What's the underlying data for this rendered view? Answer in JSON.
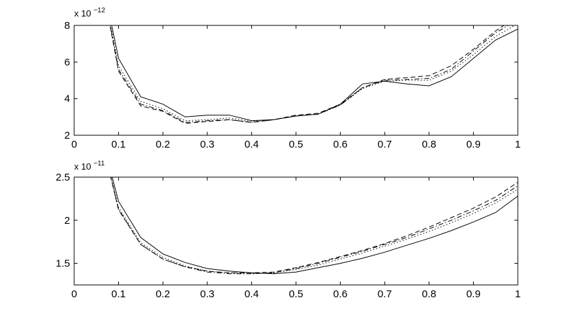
{
  "chart_data": [
    {
      "type": "line",
      "xlim": [
        0,
        1
      ],
      "ylim": [
        2,
        8
      ],
      "xticks": [
        "0",
        "0.1",
        "0.2",
        "0.3",
        "0.4",
        "0.5",
        "0.6",
        "0.7",
        "0.8",
        "0.9",
        "1"
      ],
      "yticks": [
        "2",
        "4",
        "6",
        "8"
      ],
      "y_exponent": {
        "base": "x 10",
        "power": "−12"
      },
      "grid": false,
      "x": [
        0.05,
        0.1,
        0.15,
        0.2,
        0.25,
        0.3,
        0.35,
        0.4,
        0.45,
        0.5,
        0.55,
        0.6,
        0.65,
        0.7,
        0.75,
        0.8,
        0.85,
        0.9,
        0.95,
        1.0
      ],
      "series": [
        {
          "style": "solid",
          "values": [
            12.0,
            6.2,
            4.1,
            3.7,
            3.0,
            3.1,
            3.1,
            2.8,
            2.85,
            3.05,
            3.15,
            3.7,
            4.8,
            4.95,
            4.8,
            4.7,
            5.2,
            6.2,
            7.2,
            7.8
          ]
        },
        {
          "style": "dashed",
          "values": [
            12.0,
            5.5,
            3.6,
            3.3,
            2.65,
            2.75,
            2.85,
            2.7,
            2.85,
            3.1,
            3.2,
            3.7,
            4.6,
            5.05,
            5.15,
            5.25,
            5.8,
            6.7,
            7.7,
            8.5
          ]
        },
        {
          "style": "dotted",
          "values": [
            12.0,
            5.8,
            3.85,
            3.45,
            2.8,
            2.85,
            2.95,
            2.75,
            2.85,
            3.05,
            3.15,
            3.65,
            4.55,
            4.95,
            5.0,
            5.0,
            5.5,
            6.4,
            7.4,
            8.1
          ]
        },
        {
          "style": "dashdot",
          "values": [
            12.0,
            5.6,
            3.7,
            3.35,
            2.7,
            2.8,
            2.85,
            2.7,
            2.85,
            3.05,
            3.15,
            3.65,
            4.6,
            5.0,
            5.05,
            5.1,
            5.6,
            6.6,
            7.6,
            8.3
          ]
        }
      ]
    },
    {
      "type": "line",
      "xlim": [
        0,
        1
      ],
      "ylim": [
        1.25,
        2.5
      ],
      "xticks": [
        "0",
        "0.1",
        "0.2",
        "0.3",
        "0.4",
        "0.5",
        "0.6",
        "0.7",
        "0.8",
        "0.9",
        "1"
      ],
      "yticks": [
        "1.5",
        "2",
        "2.5"
      ],
      "y_exponent": {
        "base": "x 10",
        "power": "−11"
      },
      "grid": false,
      "x": [
        0.05,
        0.1,
        0.15,
        0.2,
        0.25,
        0.3,
        0.35,
        0.4,
        0.45,
        0.5,
        0.55,
        0.6,
        0.65,
        0.7,
        0.75,
        0.8,
        0.85,
        0.9,
        0.95,
        1.0
      ],
      "series": [
        {
          "style": "solid",
          "values": [
            3.2,
            2.22,
            1.8,
            1.61,
            1.51,
            1.44,
            1.41,
            1.39,
            1.38,
            1.4,
            1.45,
            1.5,
            1.56,
            1.63,
            1.71,
            1.79,
            1.88,
            1.98,
            2.09,
            2.28
          ]
        },
        {
          "style": "dashed",
          "values": [
            3.2,
            2.12,
            1.72,
            1.55,
            1.46,
            1.41,
            1.39,
            1.39,
            1.4,
            1.45,
            1.51,
            1.58,
            1.65,
            1.73,
            1.82,
            1.92,
            2.03,
            2.14,
            2.27,
            2.44
          ]
        },
        {
          "style": "dotted",
          "values": [
            3.2,
            2.15,
            1.74,
            1.57,
            1.47,
            1.41,
            1.39,
            1.38,
            1.39,
            1.43,
            1.48,
            1.55,
            1.62,
            1.7,
            1.78,
            1.87,
            1.97,
            2.08,
            2.2,
            2.36
          ]
        },
        {
          "style": "dashdot",
          "values": [
            3.2,
            2.13,
            1.72,
            1.55,
            1.46,
            1.4,
            1.38,
            1.38,
            1.39,
            1.44,
            1.5,
            1.57,
            1.64,
            1.72,
            1.8,
            1.9,
            2.0,
            2.11,
            2.23,
            2.4
          ]
        }
      ]
    }
  ]
}
